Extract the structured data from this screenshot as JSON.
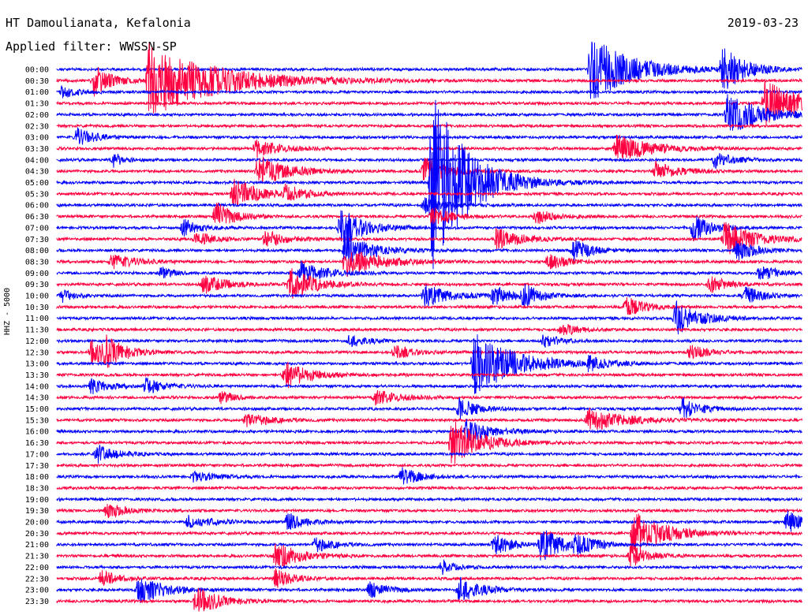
{
  "header": {
    "station": "HT Damoulianata, Kefalonia",
    "date": "2019-03-23",
    "filter": "Applied filter: WWSSN-SP"
  },
  "chart_data": {
    "type": "line",
    "ylabel": "HHZ - 5000",
    "row_labels": [
      "00:00",
      "00:30",
      "01:00",
      "01:30",
      "02:00",
      "02:30",
      "03:00",
      "03:30",
      "04:00",
      "04:30",
      "05:00",
      "05:30",
      "06:00",
      "06:30",
      "07:00",
      "07:30",
      "08:00",
      "08:30",
      "09:00",
      "09:30",
      "10:00",
      "10:30",
      "11:00",
      "11:30",
      "12:00",
      "12:30",
      "13:00",
      "13:30",
      "14:00",
      "14:30",
      "15:00",
      "15:30",
      "16:00",
      "16:30",
      "17:00",
      "17:30",
      "18:00",
      "18:30",
      "19:00",
      "19:30",
      "20:00",
      "20:30",
      "21:00",
      "21:30",
      "22:00",
      "22:30",
      "23:00",
      "23:30"
    ],
    "trace_colors": [
      "#0000ff",
      "#ff0040"
    ],
    "trace_minutes": 30,
    "events": [
      {
        "row": 0,
        "minute": 21.5,
        "amp": 42,
        "dur": 3.5
      },
      {
        "row": 0,
        "minute": 26.8,
        "amp": 30,
        "dur": 1.8
      },
      {
        "row": 1,
        "minute": 1.5,
        "amp": 20,
        "dur": 1.5
      },
      {
        "row": 1,
        "minute": 3.7,
        "amp": 46,
        "dur": 6
      },
      {
        "row": 2,
        "minute": 0.2,
        "amp": 8,
        "dur": 1.2
      },
      {
        "row": 3,
        "minute": 28.5,
        "amp": 30,
        "dur": 3
      },
      {
        "row": 4,
        "minute": 27,
        "amp": 26,
        "dur": 3
      },
      {
        "row": 6,
        "minute": 0.8,
        "amp": 12,
        "dur": 1.5
      },
      {
        "row": 7,
        "minute": 8,
        "amp": 12,
        "dur": 2
      },
      {
        "row": 7,
        "minute": 22.5,
        "amp": 18,
        "dur": 3
      },
      {
        "row": 8,
        "minute": 2.3,
        "amp": 10,
        "dur": 0.7
      },
      {
        "row": 8,
        "minute": 26.5,
        "amp": 10,
        "dur": 1.5
      },
      {
        "row": 9,
        "minute": 8.1,
        "amp": 20,
        "dur": 2.5
      },
      {
        "row": 9,
        "minute": 14.8,
        "amp": 18,
        "dur": 2
      },
      {
        "row": 9,
        "minute": 24.1,
        "amp": 12,
        "dur": 2
      },
      {
        "row": 10,
        "minute": 15.1,
        "amp": 120,
        "dur": 3
      },
      {
        "row": 11,
        "minute": 7.1,
        "amp": 18,
        "dur": 2.5
      },
      {
        "row": 11,
        "minute": 9.2,
        "amp": 10,
        "dur": 1.5
      },
      {
        "row": 12,
        "minute": 14.8,
        "amp": 10,
        "dur": 2
      },
      {
        "row": 13,
        "minute": 6.4,
        "amp": 18,
        "dur": 1.5
      },
      {
        "row": 13,
        "minute": 15.1,
        "amp": 14,
        "dur": 1.5
      },
      {
        "row": 13,
        "minute": 19.3,
        "amp": 10,
        "dur": 1.5
      },
      {
        "row": 14,
        "minute": 5.1,
        "amp": 12,
        "dur": 1.2
      },
      {
        "row": 14,
        "minute": 11.4,
        "amp": 26,
        "dur": 2
      },
      {
        "row": 14,
        "minute": 25.6,
        "amp": 18,
        "dur": 1.5
      },
      {
        "row": 15,
        "minute": 5.6,
        "amp": 10,
        "dur": 1.5
      },
      {
        "row": 15,
        "minute": 8.4,
        "amp": 12,
        "dur": 1.5
      },
      {
        "row": 15,
        "minute": 17.7,
        "amp": 14,
        "dur": 2
      },
      {
        "row": 15,
        "minute": 26.9,
        "amp": 22,
        "dur": 2.5
      },
      {
        "row": 16,
        "minute": 11.6,
        "amp": 18,
        "dur": 2.5
      },
      {
        "row": 16,
        "minute": 20.8,
        "amp": 14,
        "dur": 1.5
      },
      {
        "row": 16,
        "minute": 27.4,
        "amp": 14,
        "dur": 1.5
      },
      {
        "row": 17,
        "minute": 2.2,
        "amp": 10,
        "dur": 2
      },
      {
        "row": 17,
        "minute": 11.6,
        "amp": 18,
        "dur": 3
      },
      {
        "row": 17,
        "minute": 19.8,
        "amp": 10,
        "dur": 1.5
      },
      {
        "row": 18,
        "minute": 4.2,
        "amp": 8,
        "dur": 1
      },
      {
        "row": 18,
        "minute": 9.8,
        "amp": 16,
        "dur": 2
      },
      {
        "row": 18,
        "minute": 28.3,
        "amp": 10,
        "dur": 1.5
      },
      {
        "row": 19,
        "minute": 5.9,
        "amp": 12,
        "dur": 2
      },
      {
        "row": 19,
        "minute": 9.4,
        "amp": 22,
        "dur": 2
      },
      {
        "row": 19,
        "minute": 26.3,
        "amp": 12,
        "dur": 1.5
      },
      {
        "row": 20,
        "minute": 0.2,
        "amp": 8,
        "dur": 1
      },
      {
        "row": 20,
        "minute": 14.8,
        "amp": 16,
        "dur": 2
      },
      {
        "row": 20,
        "minute": 17.6,
        "amp": 12,
        "dur": 1.5
      },
      {
        "row": 20,
        "minute": 18.8,
        "amp": 14,
        "dur": 1.5
      },
      {
        "row": 20,
        "minute": 27.7,
        "amp": 12,
        "dur": 1.5
      },
      {
        "row": 21,
        "minute": 22.9,
        "amp": 14,
        "dur": 1.5
      },
      {
        "row": 22,
        "minute": 24.9,
        "amp": 22,
        "dur": 2
      },
      {
        "row": 23,
        "minute": 20.3,
        "amp": 8,
        "dur": 1.5
      },
      {
        "row": 24,
        "minute": 11.8,
        "amp": 8,
        "dur": 1.5
      },
      {
        "row": 24,
        "minute": 19.6,
        "amp": 8,
        "dur": 1.5
      },
      {
        "row": 25,
        "minute": 1.4,
        "amp": 16,
        "dur": 1.8
      },
      {
        "row": 25,
        "minute": 2.0,
        "amp": 14,
        "dur": 1.5
      },
      {
        "row": 25,
        "minute": 13.6,
        "amp": 10,
        "dur": 1.5
      },
      {
        "row": 25,
        "minute": 25.5,
        "amp": 10,
        "dur": 1.5
      },
      {
        "row": 26,
        "minute": 16.8,
        "amp": 40,
        "dur": 3.5
      },
      {
        "row": 26,
        "minute": 21.4,
        "amp": 8,
        "dur": 1.5
      },
      {
        "row": 27,
        "minute": 9.2,
        "amp": 18,
        "dur": 2
      },
      {
        "row": 28,
        "minute": 1.4,
        "amp": 10,
        "dur": 1.5
      },
      {
        "row": 28,
        "minute": 3.6,
        "amp": 10,
        "dur": 1.5
      },
      {
        "row": 29,
        "minute": 6.6,
        "amp": 8,
        "dur": 1.2
      },
      {
        "row": 29,
        "minute": 12.8,
        "amp": 10,
        "dur": 2
      },
      {
        "row": 30,
        "minute": 16.2,
        "amp": 14,
        "dur": 1.5
      },
      {
        "row": 30,
        "minute": 25.2,
        "amp": 14,
        "dur": 1.5
      },
      {
        "row": 31,
        "minute": 7.6,
        "amp": 10,
        "dur": 2
      },
      {
        "row": 31,
        "minute": 21.4,
        "amp": 16,
        "dur": 3
      },
      {
        "row": 32,
        "minute": 16.5,
        "amp": 16,
        "dur": 2
      },
      {
        "row": 33,
        "minute": 15.9,
        "amp": 30,
        "dur": 2.5
      },
      {
        "row": 34,
        "minute": 1.6,
        "amp": 12,
        "dur": 1.5
      },
      {
        "row": 36,
        "minute": 13.9,
        "amp": 12,
        "dur": 1.5
      },
      {
        "row": 36,
        "minute": 5.5,
        "amp": 6,
        "dur": 2
      },
      {
        "row": 39,
        "minute": 2.0,
        "amp": 10,
        "dur": 1.5
      },
      {
        "row": 40,
        "minute": 5.3,
        "amp": 8,
        "dur": 2
      },
      {
        "row": 40,
        "minute": 9.3,
        "amp": 12,
        "dur": 1.5
      },
      {
        "row": 40,
        "minute": 29.4,
        "amp": 14,
        "dur": 1.5
      },
      {
        "row": 41,
        "minute": 23.2,
        "amp": 30,
        "dur": 2.5
      },
      {
        "row": 42,
        "minute": 10.4,
        "amp": 10,
        "dur": 1.5
      },
      {
        "row": 42,
        "minute": 17.6,
        "amp": 14,
        "dur": 1.5
      },
      {
        "row": 42,
        "minute": 19.5,
        "amp": 22,
        "dur": 2
      },
      {
        "row": 42,
        "minute": 20.9,
        "amp": 10,
        "dur": 1.5
      },
      {
        "row": 43,
        "minute": 8.8,
        "amp": 18,
        "dur": 2
      },
      {
        "row": 43,
        "minute": 23.1,
        "amp": 14,
        "dur": 1.5
      },
      {
        "row": 44,
        "minute": 15.5,
        "amp": 10,
        "dur": 1.2
      },
      {
        "row": 45,
        "minute": 1.8,
        "amp": 10,
        "dur": 1.5
      },
      {
        "row": 45,
        "minute": 8.8,
        "amp": 12,
        "dur": 1.5
      },
      {
        "row": 46,
        "minute": 3.3,
        "amp": 20,
        "dur": 2
      },
      {
        "row": 46,
        "minute": 12.6,
        "amp": 10,
        "dur": 1.5
      },
      {
        "row": 46,
        "minute": 16.2,
        "amp": 16,
        "dur": 2
      },
      {
        "row": 47,
        "minute": 5.6,
        "amp": 18,
        "dur": 2
      }
    ]
  }
}
